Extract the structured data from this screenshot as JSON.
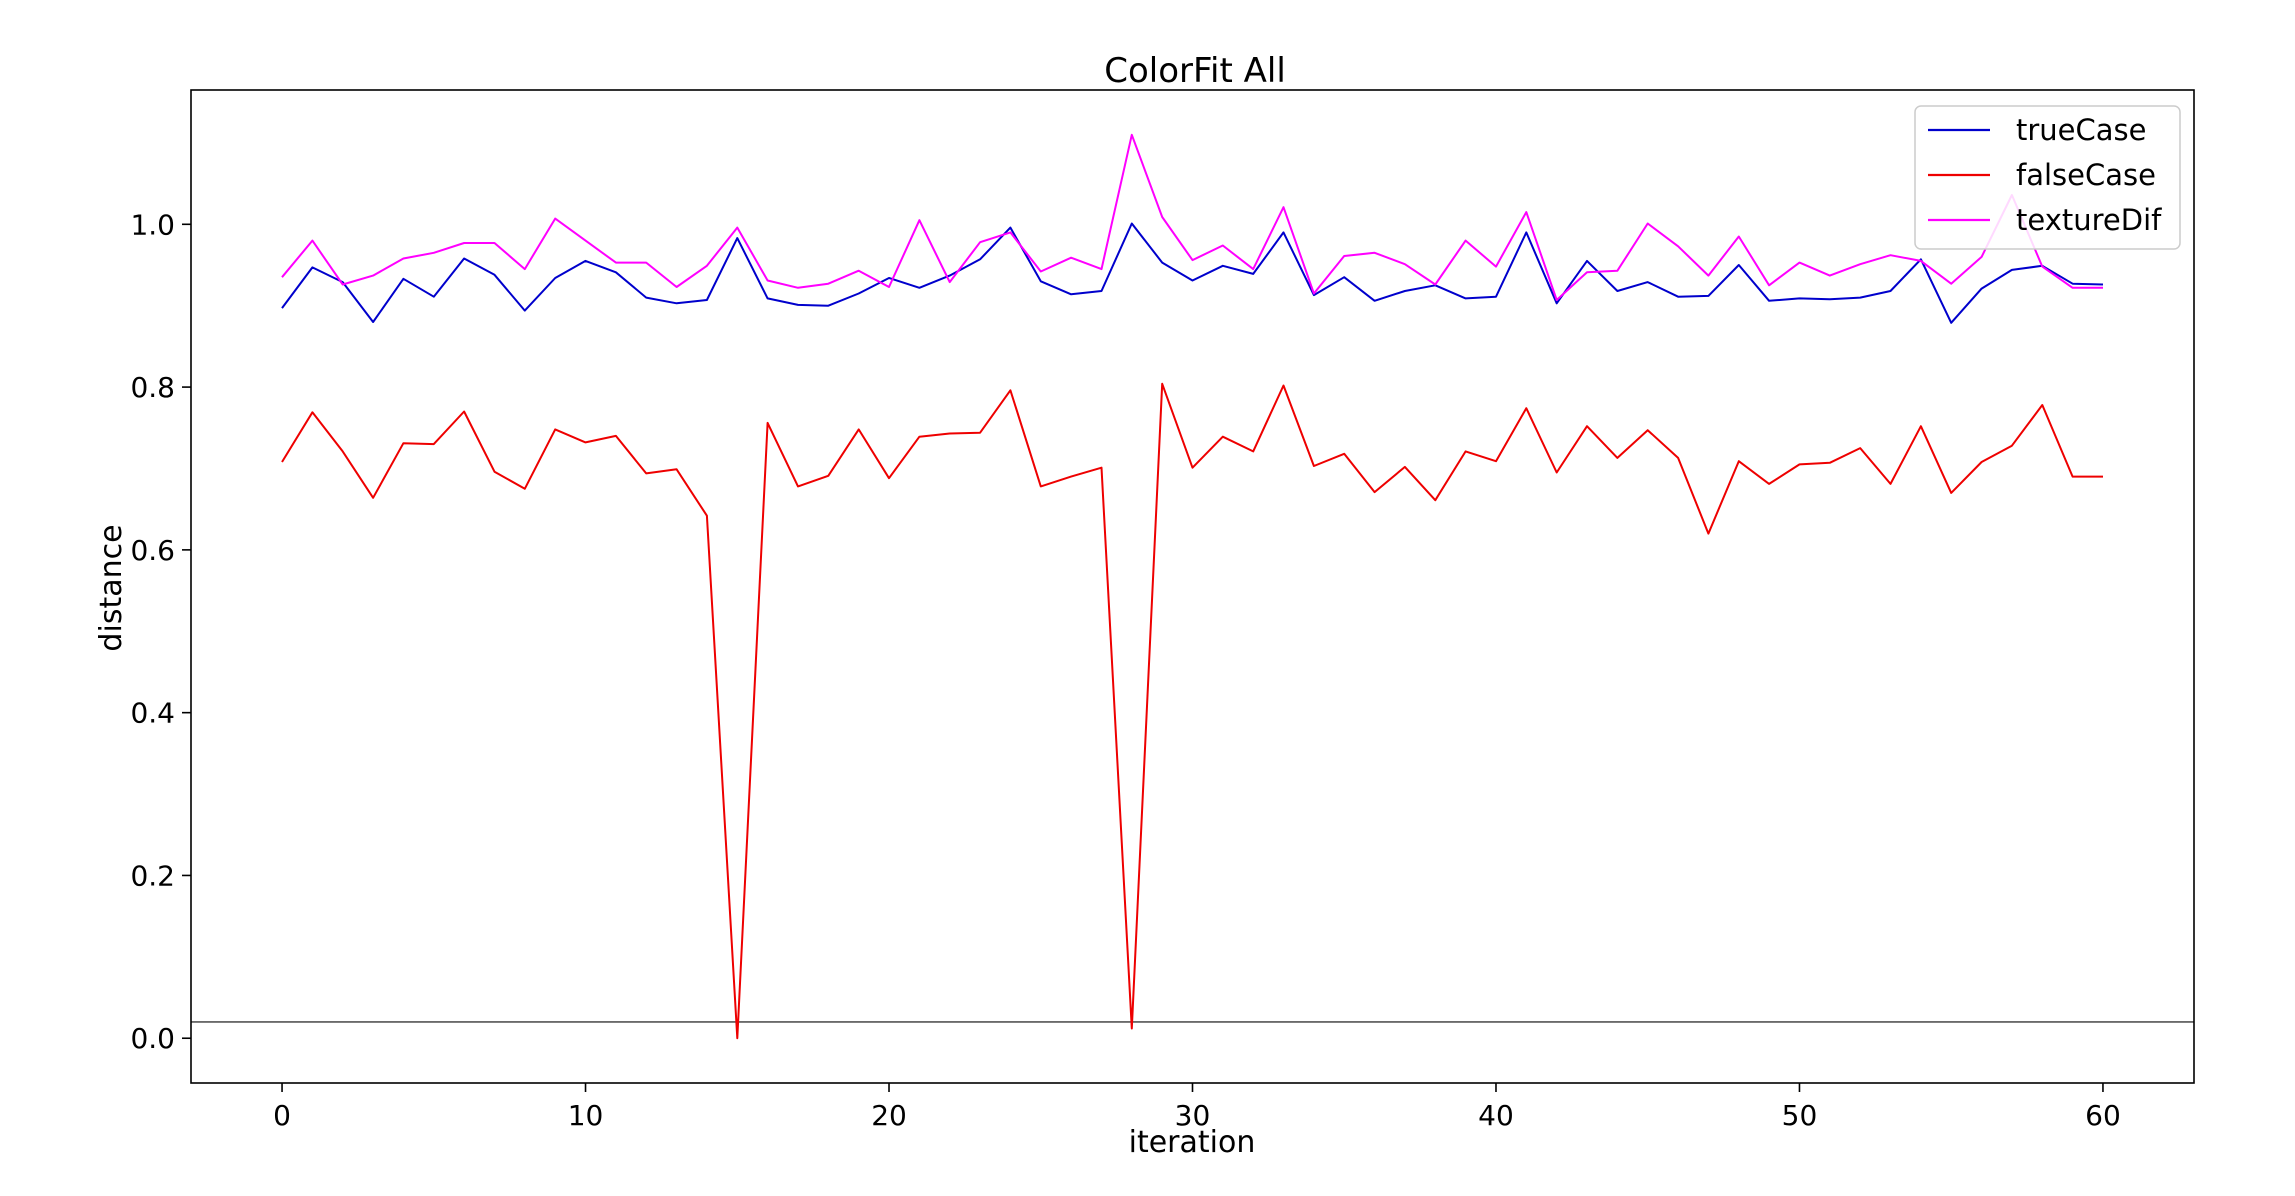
{
  "chart_data": {
    "type": "line",
    "title": "ColorFit All",
    "xlabel": "iteration",
    "ylabel": "distance",
    "xlim": [
      -3,
      63
    ],
    "ylim": [
      -0.055,
      1.165
    ],
    "xticks": [
      0,
      10,
      20,
      30,
      40,
      50,
      60
    ],
    "yticks": [
      0.0,
      0.2,
      0.4,
      0.6,
      0.8,
      1.0
    ],
    "xtick_labels": [
      "0",
      "10",
      "20",
      "30",
      "40",
      "50",
      "60"
    ],
    "ytick_labels": [
      "0.0",
      "0.2",
      "0.4",
      "0.6",
      "0.8",
      "1.0"
    ],
    "grid": false,
    "legend_position": "top-right",
    "hline": {
      "y": 0.02,
      "color": "#555555"
    },
    "x": [
      0,
      1,
      2,
      3,
      4,
      5,
      6,
      7,
      8,
      9,
      10,
      11,
      12,
      13,
      14,
      15,
      16,
      17,
      18,
      19,
      20,
      21,
      22,
      23,
      24,
      25,
      26,
      27,
      28,
      29,
      30,
      31,
      32,
      33,
      34,
      35,
      36,
      37,
      38,
      39,
      40,
      41,
      42,
      43,
      44,
      45,
      46,
      47,
      48,
      49,
      50,
      51,
      52,
      53,
      54,
      55,
      56,
      57,
      58,
      59,
      60
    ],
    "series": [
      {
        "name": "trueCase",
        "color": "#0000cc",
        "values": [
          0.897,
          0.947,
          0.929,
          0.88,
          0.933,
          0.911,
          0.958,
          0.938,
          0.894,
          0.934,
          0.955,
          0.941,
          0.91,
          0.903,
          0.907,
          0.983,
          0.909,
          0.901,
          0.9,
          0.915,
          0.934,
          0.922,
          0.937,
          0.957,
          0.996,
          0.93,
          0.914,
          0.918,
          1.001,
          0.953,
          0.931,
          0.949,
          0.939,
          0.99,
          0.913,
          0.935,
          0.906,
          0.918,
          0.925,
          0.909,
          0.911,
          0.99,
          0.903,
          0.955,
          0.918,
          0.929,
          0.911,
          0.912,
          0.95,
          0.906,
          0.909,
          0.908,
          0.91,
          0.918,
          0.957,
          0.879,
          0.921,
          0.944,
          0.949,
          0.927,
          0.926
        ]
      },
      {
        "name": "falseCase",
        "color": "#ee0000",
        "values": [
          0.708,
          0.769,
          0.721,
          0.664,
          0.731,
          0.73,
          0.77,
          0.696,
          0.675,
          0.748,
          0.732,
          0.74,
          0.694,
          0.699,
          0.642,
          0.0,
          0.756,
          0.678,
          0.691,
          0.748,
          0.688,
          0.739,
          0.743,
          0.744,
          0.796,
          0.678,
          0.69,
          0.701,
          0.012,
          0.804,
          0.701,
          0.739,
          0.721,
          0.802,
          0.703,
          0.718,
          0.671,
          0.702,
          0.661,
          0.721,
          0.709,
          0.774,
          0.695,
          0.752,
          0.713,
          0.747,
          0.713,
          0.62,
          0.709,
          0.681,
          0.705,
          0.707,
          0.725,
          0.681,
          0.752,
          0.67,
          0.708,
          0.728,
          0.778,
          0.69,
          0.69
        ]
      },
      {
        "name": "textureDif",
        "color": "#ff00ff",
        "values": [
          0.935,
          0.98,
          0.926,
          0.937,
          0.958,
          0.965,
          0.977,
          0.977,
          0.945,
          1.007,
          0.98,
          0.953,
          0.953,
          0.923,
          0.949,
          0.996,
          0.931,
          0.922,
          0.927,
          0.943,
          0.923,
          1.005,
          0.929,
          0.978,
          0.99,
          0.942,
          0.959,
          0.945,
          1.11,
          1.009,
          0.956,
          0.974,
          0.945,
          1.021,
          0.915,
          0.961,
          0.965,
          0.951,
          0.926,
          0.98,
          0.948,
          1.015,
          0.907,
          0.941,
          0.943,
          1.001,
          0.973,
          0.937,
          0.985,
          0.925,
          0.953,
          0.937,
          0.951,
          0.962,
          0.955,
          0.927,
          0.96,
          1.036,
          0.948,
          0.922,
          0.922
        ]
      }
    ]
  }
}
